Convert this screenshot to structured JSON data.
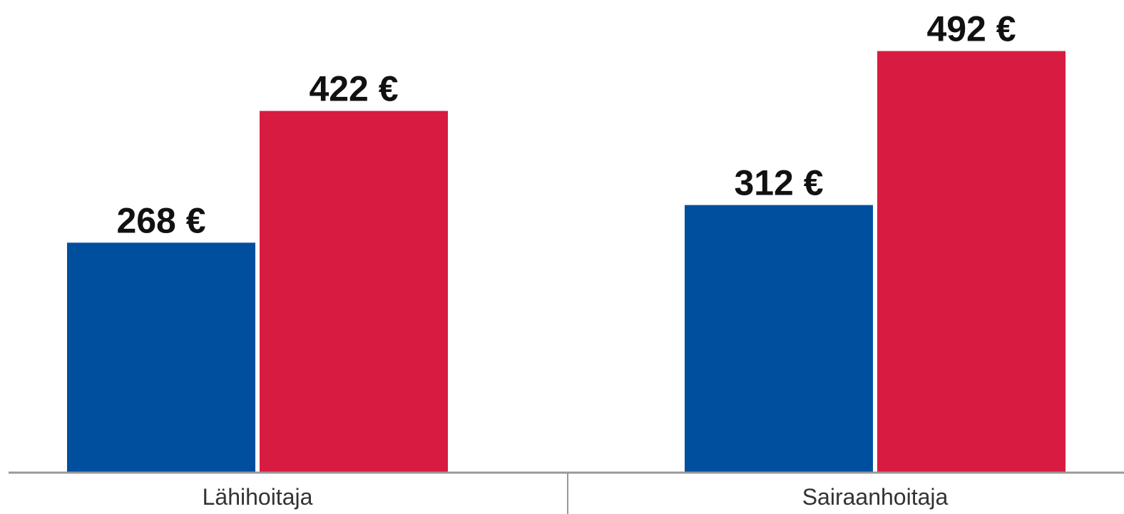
{
  "chart_data": {
    "type": "bar",
    "categories": [
      "Lähihoitaja",
      "Sairaanhoitaja"
    ],
    "series": [
      {
        "color": "#004f9f",
        "values": [
          268,
          312
        ],
        "value_labels": [
          "268 €",
          "312 €"
        ]
      },
      {
        "color": "#d81c41",
        "values": [
          422,
          492
        ],
        "value_labels": [
          "422 €",
          "492 €"
        ]
      }
    ],
    "ylim": [
      0,
      550
    ]
  }
}
